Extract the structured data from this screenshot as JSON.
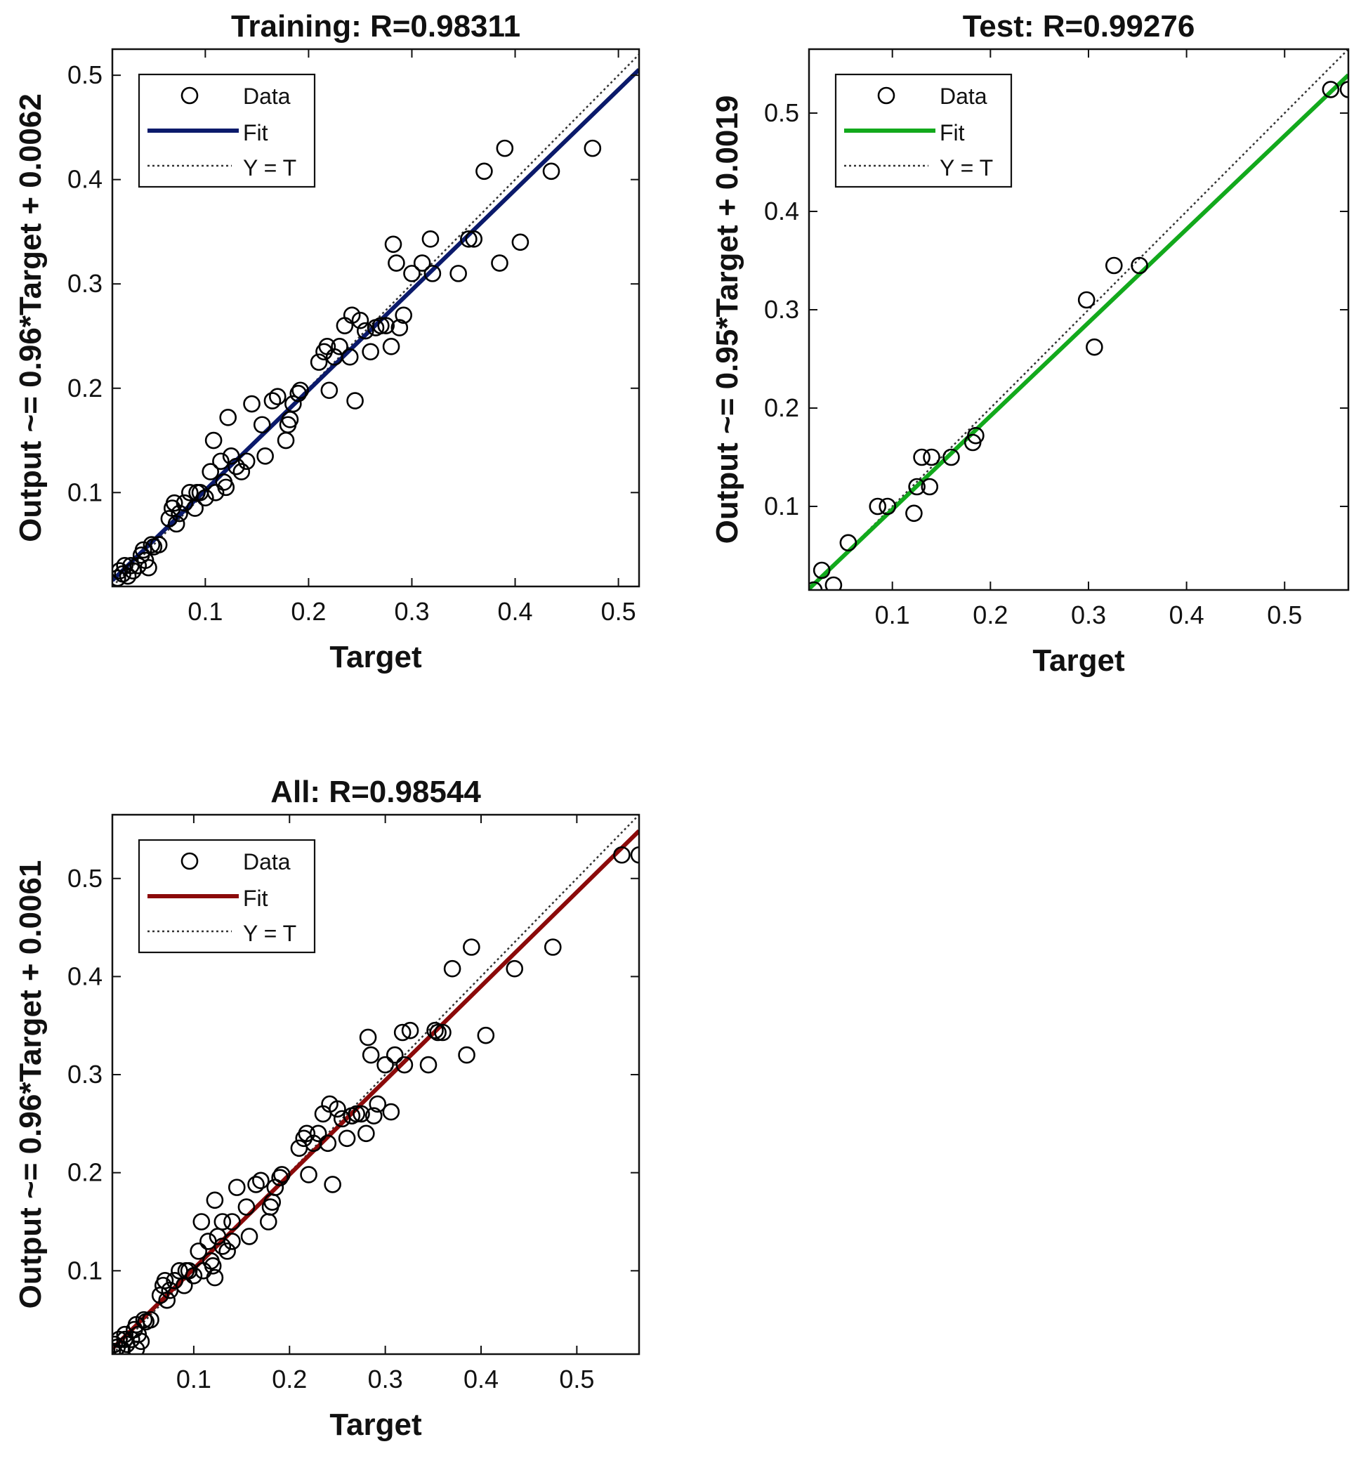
{
  "chart_data": [
    {
      "id": "training",
      "type": "scatter",
      "title": "Training: R=0.98311",
      "xlabel": "Target",
      "ylabel": "Output ~= 0.96*Target + 0.0062",
      "xlim": [
        0.01,
        0.52
      ],
      "ylim": [
        0.01,
        0.525
      ],
      "xticks": [
        0.1,
        0.2,
        0.3,
        0.4,
        0.5
      ],
      "yticks": [
        0.1,
        0.2,
        0.3,
        0.4,
        0.5
      ],
      "xtick_labels": [
        "0.1",
        "0.2",
        "0.3",
        "0.4",
        "0.5"
      ],
      "ytick_labels": [
        "0.1",
        "0.2",
        "0.3",
        "0.4",
        "0.5"
      ],
      "fit": {
        "slope": 0.96,
        "intercept": 0.0062,
        "color": "#0b1a6b"
      },
      "legend": {
        "placement": "top-left",
        "entries": [
          "Data",
          "Fit",
          "Y = T"
        ]
      },
      "grid": false,
      "points": [
        [
          0.015,
          0.018
        ],
        [
          0.017,
          0.025
        ],
        [
          0.02,
          0.022
        ],
        [
          0.022,
          0.03
        ],
        [
          0.025,
          0.02
        ],
        [
          0.028,
          0.03
        ],
        [
          0.03,
          0.025
        ],
        [
          0.035,
          0.03
        ],
        [
          0.038,
          0.04
        ],
        [
          0.04,
          0.045
        ],
        [
          0.042,
          0.035
        ],
        [
          0.045,
          0.028
        ],
        [
          0.048,
          0.05
        ],
        [
          0.05,
          0.048
        ],
        [
          0.055,
          0.05
        ],
        [
          0.065,
          0.075
        ],
        [
          0.068,
          0.085
        ],
        [
          0.07,
          0.09
        ],
        [
          0.072,
          0.07
        ],
        [
          0.075,
          0.08
        ],
        [
          0.08,
          0.09
        ],
        [
          0.085,
          0.1
        ],
        [
          0.09,
          0.085
        ],
        [
          0.092,
          0.1
        ],
        [
          0.095,
          0.1
        ],
        [
          0.1,
          0.095
        ],
        [
          0.105,
          0.12
        ],
        [
          0.108,
          0.15
        ],
        [
          0.11,
          0.1
        ],
        [
          0.115,
          0.13
        ],
        [
          0.118,
          0.11
        ],
        [
          0.12,
          0.105
        ],
        [
          0.122,
          0.172
        ],
        [
          0.125,
          0.135
        ],
        [
          0.13,
          0.125
        ],
        [
          0.135,
          0.12
        ],
        [
          0.14,
          0.13
        ],
        [
          0.145,
          0.185
        ],
        [
          0.155,
          0.165
        ],
        [
          0.158,
          0.135
        ],
        [
          0.165,
          0.188
        ],
        [
          0.17,
          0.192
        ],
        [
          0.178,
          0.15
        ],
        [
          0.18,
          0.165
        ],
        [
          0.182,
          0.17
        ],
        [
          0.185,
          0.185
        ],
        [
          0.19,
          0.195
        ],
        [
          0.192,
          0.198
        ],
        [
          0.21,
          0.225
        ],
        [
          0.215,
          0.235
        ],
        [
          0.218,
          0.24
        ],
        [
          0.22,
          0.198
        ],
        [
          0.225,
          0.23
        ],
        [
          0.23,
          0.24
        ],
        [
          0.235,
          0.26
        ],
        [
          0.24,
          0.23
        ],
        [
          0.242,
          0.27
        ],
        [
          0.245,
          0.188
        ],
        [
          0.25,
          0.265
        ],
        [
          0.255,
          0.255
        ],
        [
          0.26,
          0.235
        ],
        [
          0.265,
          0.258
        ],
        [
          0.27,
          0.26
        ],
        [
          0.275,
          0.26
        ],
        [
          0.28,
          0.24
        ],
        [
          0.282,
          0.338
        ],
        [
          0.285,
          0.32
        ],
        [
          0.288,
          0.258
        ],
        [
          0.292,
          0.27
        ],
        [
          0.3,
          0.31
        ],
        [
          0.31,
          0.32
        ],
        [
          0.318,
          0.343
        ],
        [
          0.32,
          0.31
        ],
        [
          0.345,
          0.31
        ],
        [
          0.355,
          0.343
        ],
        [
          0.36,
          0.343
        ],
        [
          0.37,
          0.408
        ],
        [
          0.385,
          0.32
        ],
        [
          0.39,
          0.43
        ],
        [
          0.405,
          0.34
        ],
        [
          0.435,
          0.408
        ],
        [
          0.475,
          0.43
        ]
      ]
    },
    {
      "id": "test",
      "type": "scatter",
      "title": "Test: R=0.99276",
      "xlabel": "Target",
      "ylabel": "Output ~= 0.95*Target + 0.0019",
      "xlim": [
        0.015,
        0.565
      ],
      "ylim": [
        0.015,
        0.565
      ],
      "xticks": [
        0.1,
        0.2,
        0.3,
        0.4,
        0.5
      ],
      "yticks": [
        0.1,
        0.2,
        0.3,
        0.4,
        0.5
      ],
      "xtick_labels": [
        "0.1",
        "0.2",
        "0.3",
        "0.4",
        "0.5"
      ],
      "ytick_labels": [
        "0.1",
        "0.2",
        "0.3",
        "0.4",
        "0.5"
      ],
      "fit": {
        "slope": 0.95,
        "intercept": 0.0019,
        "color": "#12a91c"
      },
      "legend": {
        "placement": "top-left",
        "entries": [
          "Data",
          "Fit",
          "Y = T"
        ]
      },
      "grid": false,
      "points": [
        [
          0.02,
          0.015
        ],
        [
          0.028,
          0.035
        ],
        [
          0.04,
          0.02
        ],
        [
          0.055,
          0.063
        ],
        [
          0.085,
          0.1
        ],
        [
          0.095,
          0.1
        ],
        [
          0.122,
          0.093
        ],
        [
          0.125,
          0.12
        ],
        [
          0.13,
          0.15
        ],
        [
          0.138,
          0.12
        ],
        [
          0.14,
          0.15
        ],
        [
          0.16,
          0.15
        ],
        [
          0.182,
          0.165
        ],
        [
          0.185,
          0.172
        ],
        [
          0.298,
          0.31
        ],
        [
          0.306,
          0.262
        ],
        [
          0.326,
          0.345
        ],
        [
          0.352,
          0.345
        ],
        [
          0.547,
          0.524
        ],
        [
          0.565,
          0.524
        ]
      ]
    },
    {
      "id": "all",
      "type": "scatter",
      "title": "All: R=0.98544",
      "xlabel": "Target",
      "ylabel": "Output ~= 0.96*Target + 0.0061",
      "xlim": [
        0.015,
        0.565
      ],
      "ylim": [
        0.015,
        0.565
      ],
      "xticks": [
        0.1,
        0.2,
        0.3,
        0.4,
        0.5
      ],
      "yticks": [
        0.1,
        0.2,
        0.3,
        0.4,
        0.5
      ],
      "xtick_labels": [
        "0.1",
        "0.2",
        "0.3",
        "0.4",
        "0.5"
      ],
      "ytick_labels": [
        "0.1",
        "0.2",
        "0.3",
        "0.4",
        "0.5"
      ],
      "fit": {
        "slope": 0.96,
        "intercept": 0.0061,
        "color": "#8b0a0a"
      },
      "legend": {
        "placement": "top-left",
        "entries": [
          "Data",
          "Fit",
          "Y = T"
        ]
      },
      "grid": false,
      "points": [
        [
          0.015,
          0.018
        ],
        [
          0.017,
          0.025
        ],
        [
          0.02,
          0.022
        ],
        [
          0.022,
          0.03
        ],
        [
          0.025,
          0.02
        ],
        [
          0.028,
          0.03
        ],
        [
          0.03,
          0.025
        ],
        [
          0.035,
          0.03
        ],
        [
          0.038,
          0.04
        ],
        [
          0.04,
          0.045
        ],
        [
          0.042,
          0.035
        ],
        [
          0.045,
          0.028
        ],
        [
          0.048,
          0.05
        ],
        [
          0.05,
          0.048
        ],
        [
          0.055,
          0.05
        ],
        [
          0.04,
          0.02
        ],
        [
          0.028,
          0.035
        ],
        [
          0.065,
          0.075
        ],
        [
          0.068,
          0.085
        ],
        [
          0.07,
          0.09
        ],
        [
          0.072,
          0.07
        ],
        [
          0.075,
          0.08
        ],
        [
          0.08,
          0.09
        ],
        [
          0.085,
          0.1
        ],
        [
          0.09,
          0.085
        ],
        [
          0.092,
          0.1
        ],
        [
          0.095,
          0.1
        ],
        [
          0.1,
          0.095
        ],
        [
          0.105,
          0.12
        ],
        [
          0.108,
          0.15
        ],
        [
          0.11,
          0.1
        ],
        [
          0.115,
          0.13
        ],
        [
          0.118,
          0.11
        ],
        [
          0.12,
          0.105
        ],
        [
          0.122,
          0.172
        ],
        [
          0.125,
          0.135
        ],
        [
          0.13,
          0.125
        ],
        [
          0.135,
          0.12
        ],
        [
          0.14,
          0.13
        ],
        [
          0.145,
          0.185
        ],
        [
          0.155,
          0.165
        ],
        [
          0.158,
          0.135
        ],
        [
          0.165,
          0.188
        ],
        [
          0.17,
          0.192
        ],
        [
          0.178,
          0.15
        ],
        [
          0.18,
          0.165
        ],
        [
          0.182,
          0.17
        ],
        [
          0.185,
          0.185
        ],
        [
          0.19,
          0.195
        ],
        [
          0.192,
          0.198
        ],
        [
          0.122,
          0.093
        ],
        [
          0.13,
          0.15
        ],
        [
          0.14,
          0.15
        ],
        [
          0.21,
          0.225
        ],
        [
          0.215,
          0.235
        ],
        [
          0.218,
          0.24
        ],
        [
          0.22,
          0.198
        ],
        [
          0.225,
          0.23
        ],
        [
          0.23,
          0.24
        ],
        [
          0.235,
          0.26
        ],
        [
          0.24,
          0.23
        ],
        [
          0.242,
          0.27
        ],
        [
          0.245,
          0.188
        ],
        [
          0.25,
          0.265
        ],
        [
          0.255,
          0.255
        ],
        [
          0.26,
          0.235
        ],
        [
          0.265,
          0.258
        ],
        [
          0.27,
          0.26
        ],
        [
          0.275,
          0.26
        ],
        [
          0.28,
          0.24
        ],
        [
          0.282,
          0.338
        ],
        [
          0.285,
          0.32
        ],
        [
          0.288,
          0.258
        ],
        [
          0.292,
          0.27
        ],
        [
          0.3,
          0.31
        ],
        [
          0.306,
          0.262
        ],
        [
          0.31,
          0.32
        ],
        [
          0.318,
          0.343
        ],
        [
          0.32,
          0.31
        ],
        [
          0.326,
          0.345
        ],
        [
          0.345,
          0.31
        ],
        [
          0.352,
          0.345
        ],
        [
          0.355,
          0.343
        ],
        [
          0.36,
          0.343
        ],
        [
          0.37,
          0.408
        ],
        [
          0.385,
          0.32
        ],
        [
          0.39,
          0.43
        ],
        [
          0.405,
          0.34
        ],
        [
          0.435,
          0.408
        ],
        [
          0.475,
          0.43
        ],
        [
          0.547,
          0.524
        ],
        [
          0.565,
          0.524
        ]
      ]
    }
  ]
}
